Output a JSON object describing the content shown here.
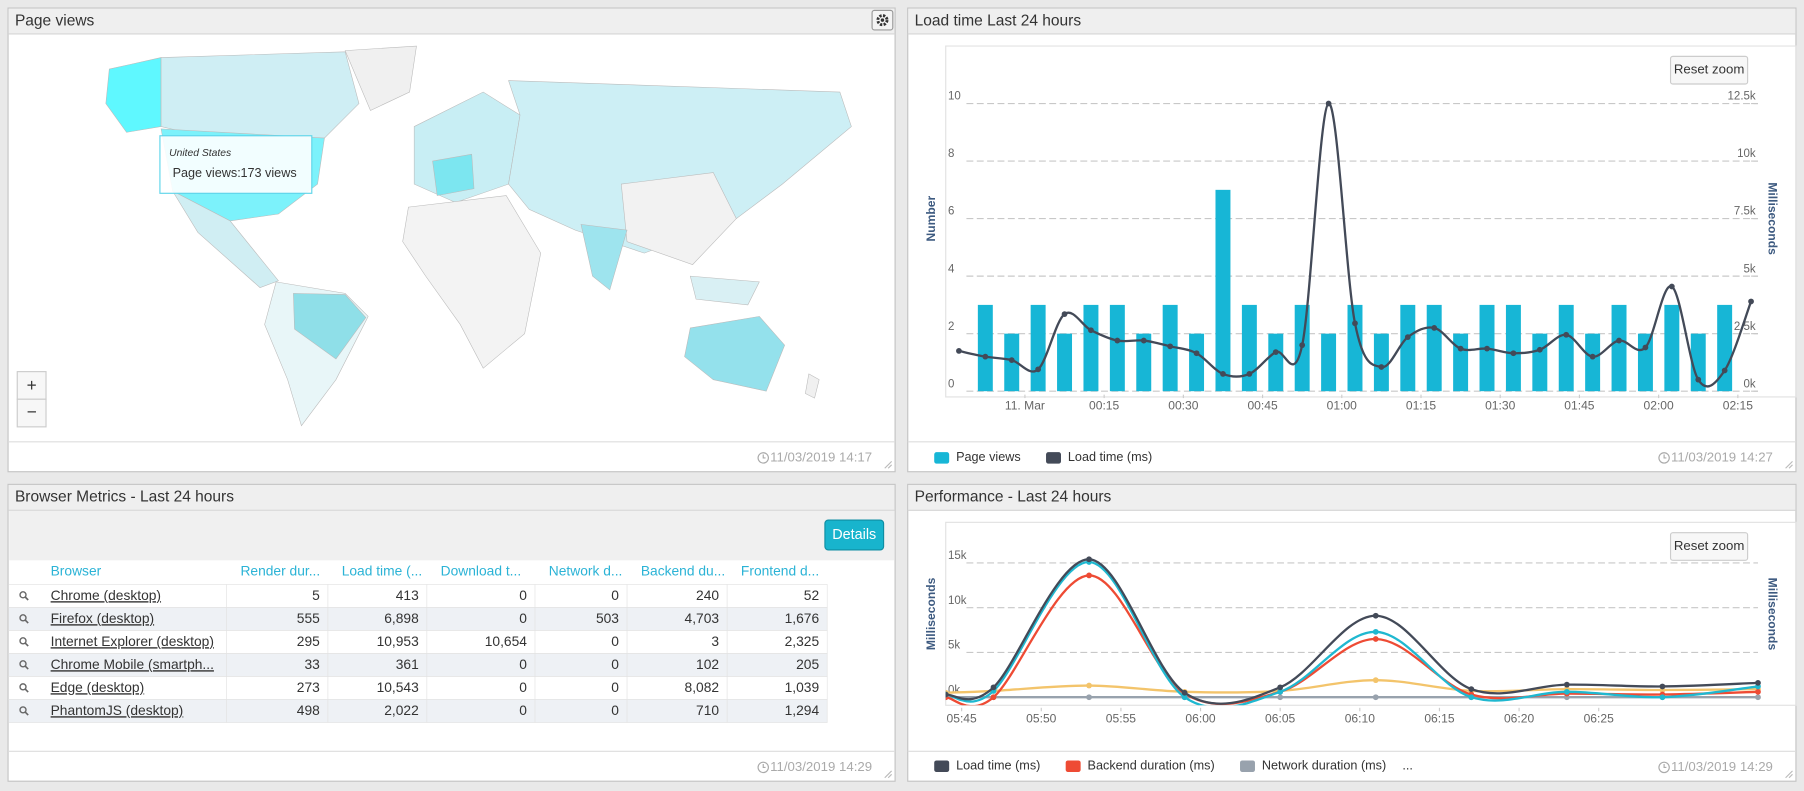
{
  "panels": [
    {
      "title": "Page views",
      "updated": "11/03/2019 14:17"
    },
    {
      "title": "Load time Last 24 hours",
      "updated": "11/03/2019 14:27"
    },
    {
      "title": "Browser Metrics - Last 24 hours",
      "updated": "11/03/2019 14:29"
    },
    {
      "title": "Performance - Last 24 hours",
      "updated": "11/03/2019 14:29"
    }
  ],
  "map": {
    "tooltip": {
      "title": "United States",
      "label": "Page views:",
      "value": "173 views"
    },
    "zoom_in": "+",
    "zoom_out": "−"
  },
  "table": {
    "button": "Details",
    "columns": [
      "Browser",
      "Render dur...",
      "Load time (...",
      "Download t...",
      "Network d...",
      "Backend du...",
      "Frontend d..."
    ],
    "rows": [
      [
        "Chrome (desktop)",
        "5",
        "413",
        "0",
        "0",
        "240",
        "52"
      ],
      [
        "Firefox (desktop)",
        "555",
        "6,898",
        "0",
        "503",
        "4,703",
        "1,676"
      ],
      [
        "Internet Explorer (desktop)",
        "295",
        "10,953",
        "10,654",
        "0",
        "3",
        "2,325"
      ],
      [
        "Chrome Mobile (smartph...",
        "33",
        "361",
        "0",
        "0",
        "102",
        "205"
      ],
      [
        "Edge (desktop)",
        "273",
        "10,543",
        "0",
        "0",
        "8,082",
        "1,039"
      ],
      [
        "PhantomJS (desktop)",
        "498",
        "2,022",
        "0",
        "0",
        "710",
        "1,294"
      ]
    ]
  },
  "chart_data": [
    {
      "type": "combo",
      "reset_zoom": "Reset zoom",
      "ylabel": "Number",
      "y2label": "Milliseconds",
      "xlim": [
        -15,
        146
      ],
      "xticks": [
        {
          "value": 0,
          "label": "11. Mar"
        },
        {
          "value": 15,
          "label": "00:15"
        },
        {
          "value": 30,
          "label": "00:30"
        },
        {
          "value": 45,
          "label": "00:45"
        },
        {
          "value": 60,
          "label": "01:00"
        },
        {
          "value": 75,
          "label": "01:15"
        },
        {
          "value": 90,
          "label": "01:30"
        },
        {
          "value": 105,
          "label": "01:45"
        },
        {
          "value": 120,
          "label": "02:00"
        },
        {
          "value": 135,
          "label": "02:15"
        }
      ],
      "ylim": [
        0,
        12
      ],
      "yticks": [
        0,
        2,
        4,
        6,
        8,
        10
      ],
      "y2lim": [
        0,
        15000
      ],
      "y2ticks": [
        {
          "value": 0,
          "label": "0k"
        },
        {
          "value": 2500,
          "label": "2.5k"
        },
        {
          "value": 5000,
          "label": "5k"
        },
        {
          "value": 7500,
          "label": "7.5k"
        },
        {
          "value": 10000,
          "label": "10k"
        },
        {
          "value": 12500,
          "label": "12.5k"
        }
      ],
      "grid": true,
      "series": [
        {
          "name": "Page views",
          "kind": "bar",
          "color": "#17b6d6",
          "x": [
            -7.5,
            -2.5,
            2.5,
            7.5,
            12.5,
            17.5,
            22.5,
            27.5,
            32.5,
            37.5,
            42.5,
            47.5,
            52.5,
            57.5,
            62.5,
            67.5,
            72.5,
            77.5,
            82.5,
            87.5,
            92.5,
            97.5,
            102.5,
            107.5,
            112.5,
            117.5,
            122.5,
            127.5,
            132.5
          ],
          "values": [
            3,
            2,
            3,
            2,
            3,
            3,
            2,
            3,
            2,
            7,
            3,
            2,
            3,
            2,
            3,
            2,
            3,
            3,
            2,
            3,
            3,
            2,
            3,
            2,
            3,
            2,
            3,
            2,
            3
          ]
        },
        {
          "name": "Load time (ms)",
          "kind": "line",
          "axis": "y2",
          "color": "#434a58",
          "x": [
            -12.5,
            -7.5,
            -2.5,
            2.5,
            7.5,
            12.5,
            17.5,
            22.5,
            27.5,
            32.5,
            37.5,
            42.5,
            47.5,
            52.5,
            57.5,
            62.5,
            67.5,
            72.5,
            77.5,
            82.5,
            87.5,
            92.5,
            97.5,
            102.5,
            107.5,
            112.5,
            117.5,
            122.5,
            127.5,
            132.5,
            137.5
          ],
          "values": [
            1750,
            1500,
            1350,
            950,
            3350,
            2650,
            2200,
            2200,
            1950,
            1650,
            750,
            750,
            1700,
            2000,
            12500,
            2950,
            1050,
            2350,
            2750,
            1850,
            1850,
            1650,
            1800,
            2450,
            1500,
            2200,
            1900,
            4550,
            500,
            900,
            3900
          ]
        }
      ]
    },
    {
      "type": "line",
      "reset_zoom": "Reset zoom",
      "ylabel": "Milliseconds",
      "y2label": "Milliseconds",
      "xlim": [
        344,
        395
      ],
      "xticks": [
        {
          "value": 345,
          "label": "05:45"
        },
        {
          "value": 350,
          "label": "05:50"
        },
        {
          "value": 355,
          "label": "05:55"
        },
        {
          "value": 360,
          "label": "06:00"
        },
        {
          "value": 365,
          "label": "06:05"
        },
        {
          "value": 370,
          "label": "06:10"
        },
        {
          "value": 375,
          "label": "06:15"
        },
        {
          "value": 380,
          "label": "06:20"
        },
        {
          "value": 385,
          "label": "06:25"
        }
      ],
      "ylim": [
        -800,
        19400
      ],
      "yticks": [
        {
          "value": 0,
          "label": "0k"
        },
        {
          "value": 5000,
          "label": "5k"
        },
        {
          "value": 10000,
          "label": "10k"
        },
        {
          "value": 15000,
          "label": "15k"
        }
      ],
      "grid": true,
      "x": [
        344,
        347,
        353,
        359,
        365,
        371,
        377,
        383,
        389,
        395
      ],
      "legend_more": "...",
      "series": [
        {
          "color": "#f3c46b",
          "values": [
            500,
            700,
            1300,
            600,
            700,
            1900,
            700,
            900,
            800,
            900
          ]
        },
        {
          "name": "Network duration (ms)",
          "color": "#98a2ad",
          "values": [
            0,
            0,
            0,
            0,
            0,
            0,
            0,
            0,
            0,
            0
          ]
        },
        {
          "name": "Backend duration (ms)",
          "color": "#ee4b34",
          "values": [
            0,
            0,
            13600,
            400,
            600,
            6500,
            300,
            400,
            300,
            600
          ]
        },
        {
          "color": "#1fb8d0",
          "values": [
            300,
            700,
            15100,
            0,
            600,
            7300,
            0,
            600,
            0,
            1200
          ]
        },
        {
          "name": "Load time (ms)",
          "color": "#434a58",
          "values": [
            300,
            1100,
            15400,
            500,
            1100,
            9100,
            900,
            1400,
            1200,
            1600
          ]
        }
      ]
    }
  ]
}
